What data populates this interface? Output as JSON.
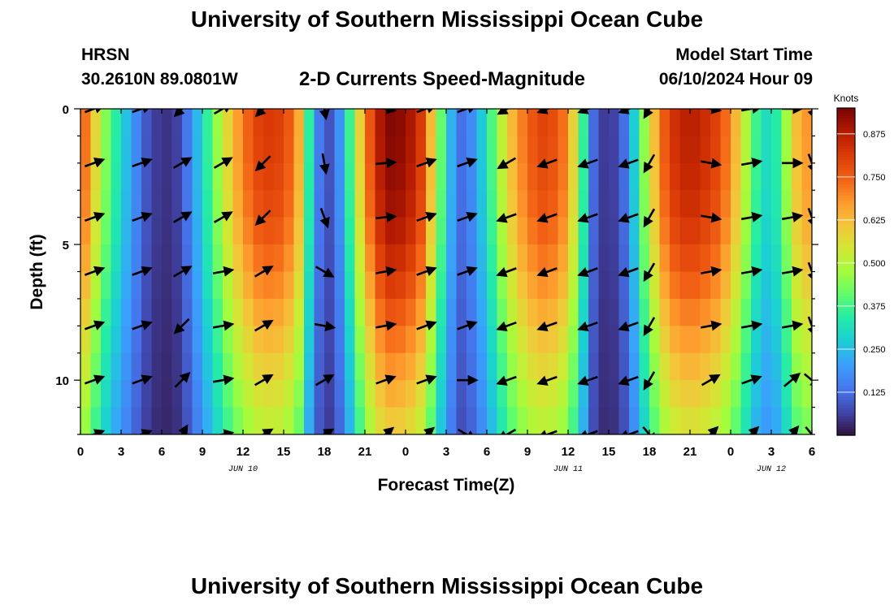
{
  "header": {
    "title": "University of Southern Mississippi Ocean Cube",
    "station": "HRSN",
    "coordinates": "30.2610N  89.0801W",
    "chart_title": "2-D Currents Speed-Magnitude",
    "model_start_label": "Model Start Time",
    "model_start_value": "06/10/2024 Hour 09"
  },
  "footer": {
    "title": "University of Southern Mississippi Ocean Cube"
  },
  "colors": {
    "background": "#ffffff",
    "arrow": "#000000",
    "axis": "#000000"
  },
  "chart_data": {
    "type": "heatmap",
    "title": "2-D Currents Speed-Magnitude",
    "xlabel": "Forecast Time(Z)",
    "ylabel": "Depth (ft)",
    "x_range_hours": [
      0,
      54
    ],
    "ylim_ft": [
      0,
      12
    ],
    "x_tick_values": [
      0,
      3,
      6,
      9,
      12,
      15,
      18,
      21,
      24,
      27,
      30,
      33,
      36,
      39,
      42,
      45,
      48,
      51,
      54
    ],
    "x_tick_labels": [
      "0",
      "3",
      "6",
      "9",
      "12",
      "15",
      "18",
      "21",
      "0",
      "3",
      "6",
      "9",
      "12",
      "15",
      "18",
      "21",
      "0",
      "3",
      "6"
    ],
    "y_tick_values": [
      0,
      5,
      10
    ],
    "y_tick_labels": [
      "0",
      "5",
      "10"
    ],
    "date_labels": [
      {
        "hour": 12,
        "text": "JUN 10"
      },
      {
        "hour": 36,
        "text": "JUN 11"
      },
      {
        "hour": 51,
        "text": "JUN 12"
      }
    ],
    "colorbar": {
      "label": "Knots",
      "min": 0.0,
      "max": 0.95,
      "ticks": [
        0.125,
        0.25,
        0.375,
        0.5,
        0.625,
        0.75,
        0.875
      ],
      "tick_labels": [
        "0.125",
        "0.250",
        "0.375",
        "0.500",
        "0.625",
        "0.750",
        "0.875"
      ]
    },
    "speed_profile_hours": [
      0,
      1,
      2,
      3,
      4,
      5,
      6,
      7,
      8,
      9,
      10,
      11,
      12,
      13,
      14,
      15,
      16,
      17,
      18,
      19,
      20,
      21,
      22,
      23,
      24,
      25,
      26,
      27,
      28,
      29,
      30,
      31,
      32,
      33,
      34,
      35,
      36,
      37,
      38,
      39,
      40,
      41,
      42,
      43,
      44,
      45,
      46,
      47,
      48,
      49,
      50,
      51,
      52,
      53,
      54
    ],
    "speed_profile_knots": [
      0.8,
      0.6,
      0.42,
      0.3,
      0.18,
      0.08,
      0.04,
      0.05,
      0.15,
      0.3,
      0.45,
      0.6,
      0.72,
      0.8,
      0.82,
      0.8,
      0.7,
      0.3,
      0.05,
      0.15,
      0.4,
      0.7,
      0.88,
      0.95,
      0.92,
      0.85,
      0.6,
      0.3,
      0.12,
      0.18,
      0.32,
      0.5,
      0.65,
      0.75,
      0.8,
      0.78,
      0.7,
      0.4,
      0.08,
      0.04,
      0.1,
      0.3,
      0.55,
      0.75,
      0.85,
      0.88,
      0.85,
      0.8,
      0.7,
      0.52,
      0.35,
      0.28,
      0.45,
      0.65,
      0.7
    ],
    "depth_attenuation_ft": [
      0,
      2,
      4,
      6,
      8,
      10,
      12
    ],
    "depth_attenuation_factor": [
      1.0,
      0.98,
      0.93,
      0.82,
      0.68,
      0.55,
      0.42
    ],
    "arrow_hours": [
      1,
      4.5,
      7.5,
      10.5,
      13.5,
      18,
      22.5,
      25.5,
      28.5,
      31.5,
      34.5,
      37.5,
      40.5,
      42,
      46.5,
      49.5,
      52.5,
      54
    ],
    "arrow_depths_ft": [
      0,
      2,
      4,
      6,
      8,
      10,
      12
    ],
    "arrow_direction_deg": [
      [
        70,
        70,
        70,
        70,
        70,
        70,
        70
      ],
      [
        70,
        70,
        70,
        70,
        70,
        70,
        70
      ],
      [
        225,
        60,
        60,
        60,
        225,
        45,
        30
      ],
      [
        60,
        60,
        60,
        80,
        80,
        80,
        80
      ],
      [
        225,
        225,
        225,
        60,
        60,
        60,
        60
      ],
      [
        170,
        170,
        160,
        120,
        100,
        60,
        60
      ],
      [
        100,
        85,
        85,
        80,
        80,
        70,
        50
      ],
      [
        70,
        70,
        70,
        70,
        70,
        70,
        50
      ],
      [
        70,
        70,
        70,
        70,
        70,
        90,
        120
      ],
      [
        240,
        240,
        250,
        250,
        250,
        250,
        240
      ],
      [
        250,
        250,
        250,
        250,
        250,
        250,
        250
      ],
      [
        250,
        250,
        250,
        250,
        250,
        250,
        250
      ],
      [
        250,
        250,
        250,
        250,
        250,
        250,
        250
      ],
      [
        210,
        210,
        210,
        210,
        210,
        210,
        140
      ],
      [
        100,
        100,
        100,
        80,
        80,
        60,
        45
      ],
      [
        80,
        80,
        80,
        80,
        80,
        70,
        45
      ],
      [
        90,
        90,
        80,
        80,
        80,
        50,
        40
      ],
      [
        160,
        160,
        160,
        160,
        160,
        130,
        140
      ]
    ]
  }
}
